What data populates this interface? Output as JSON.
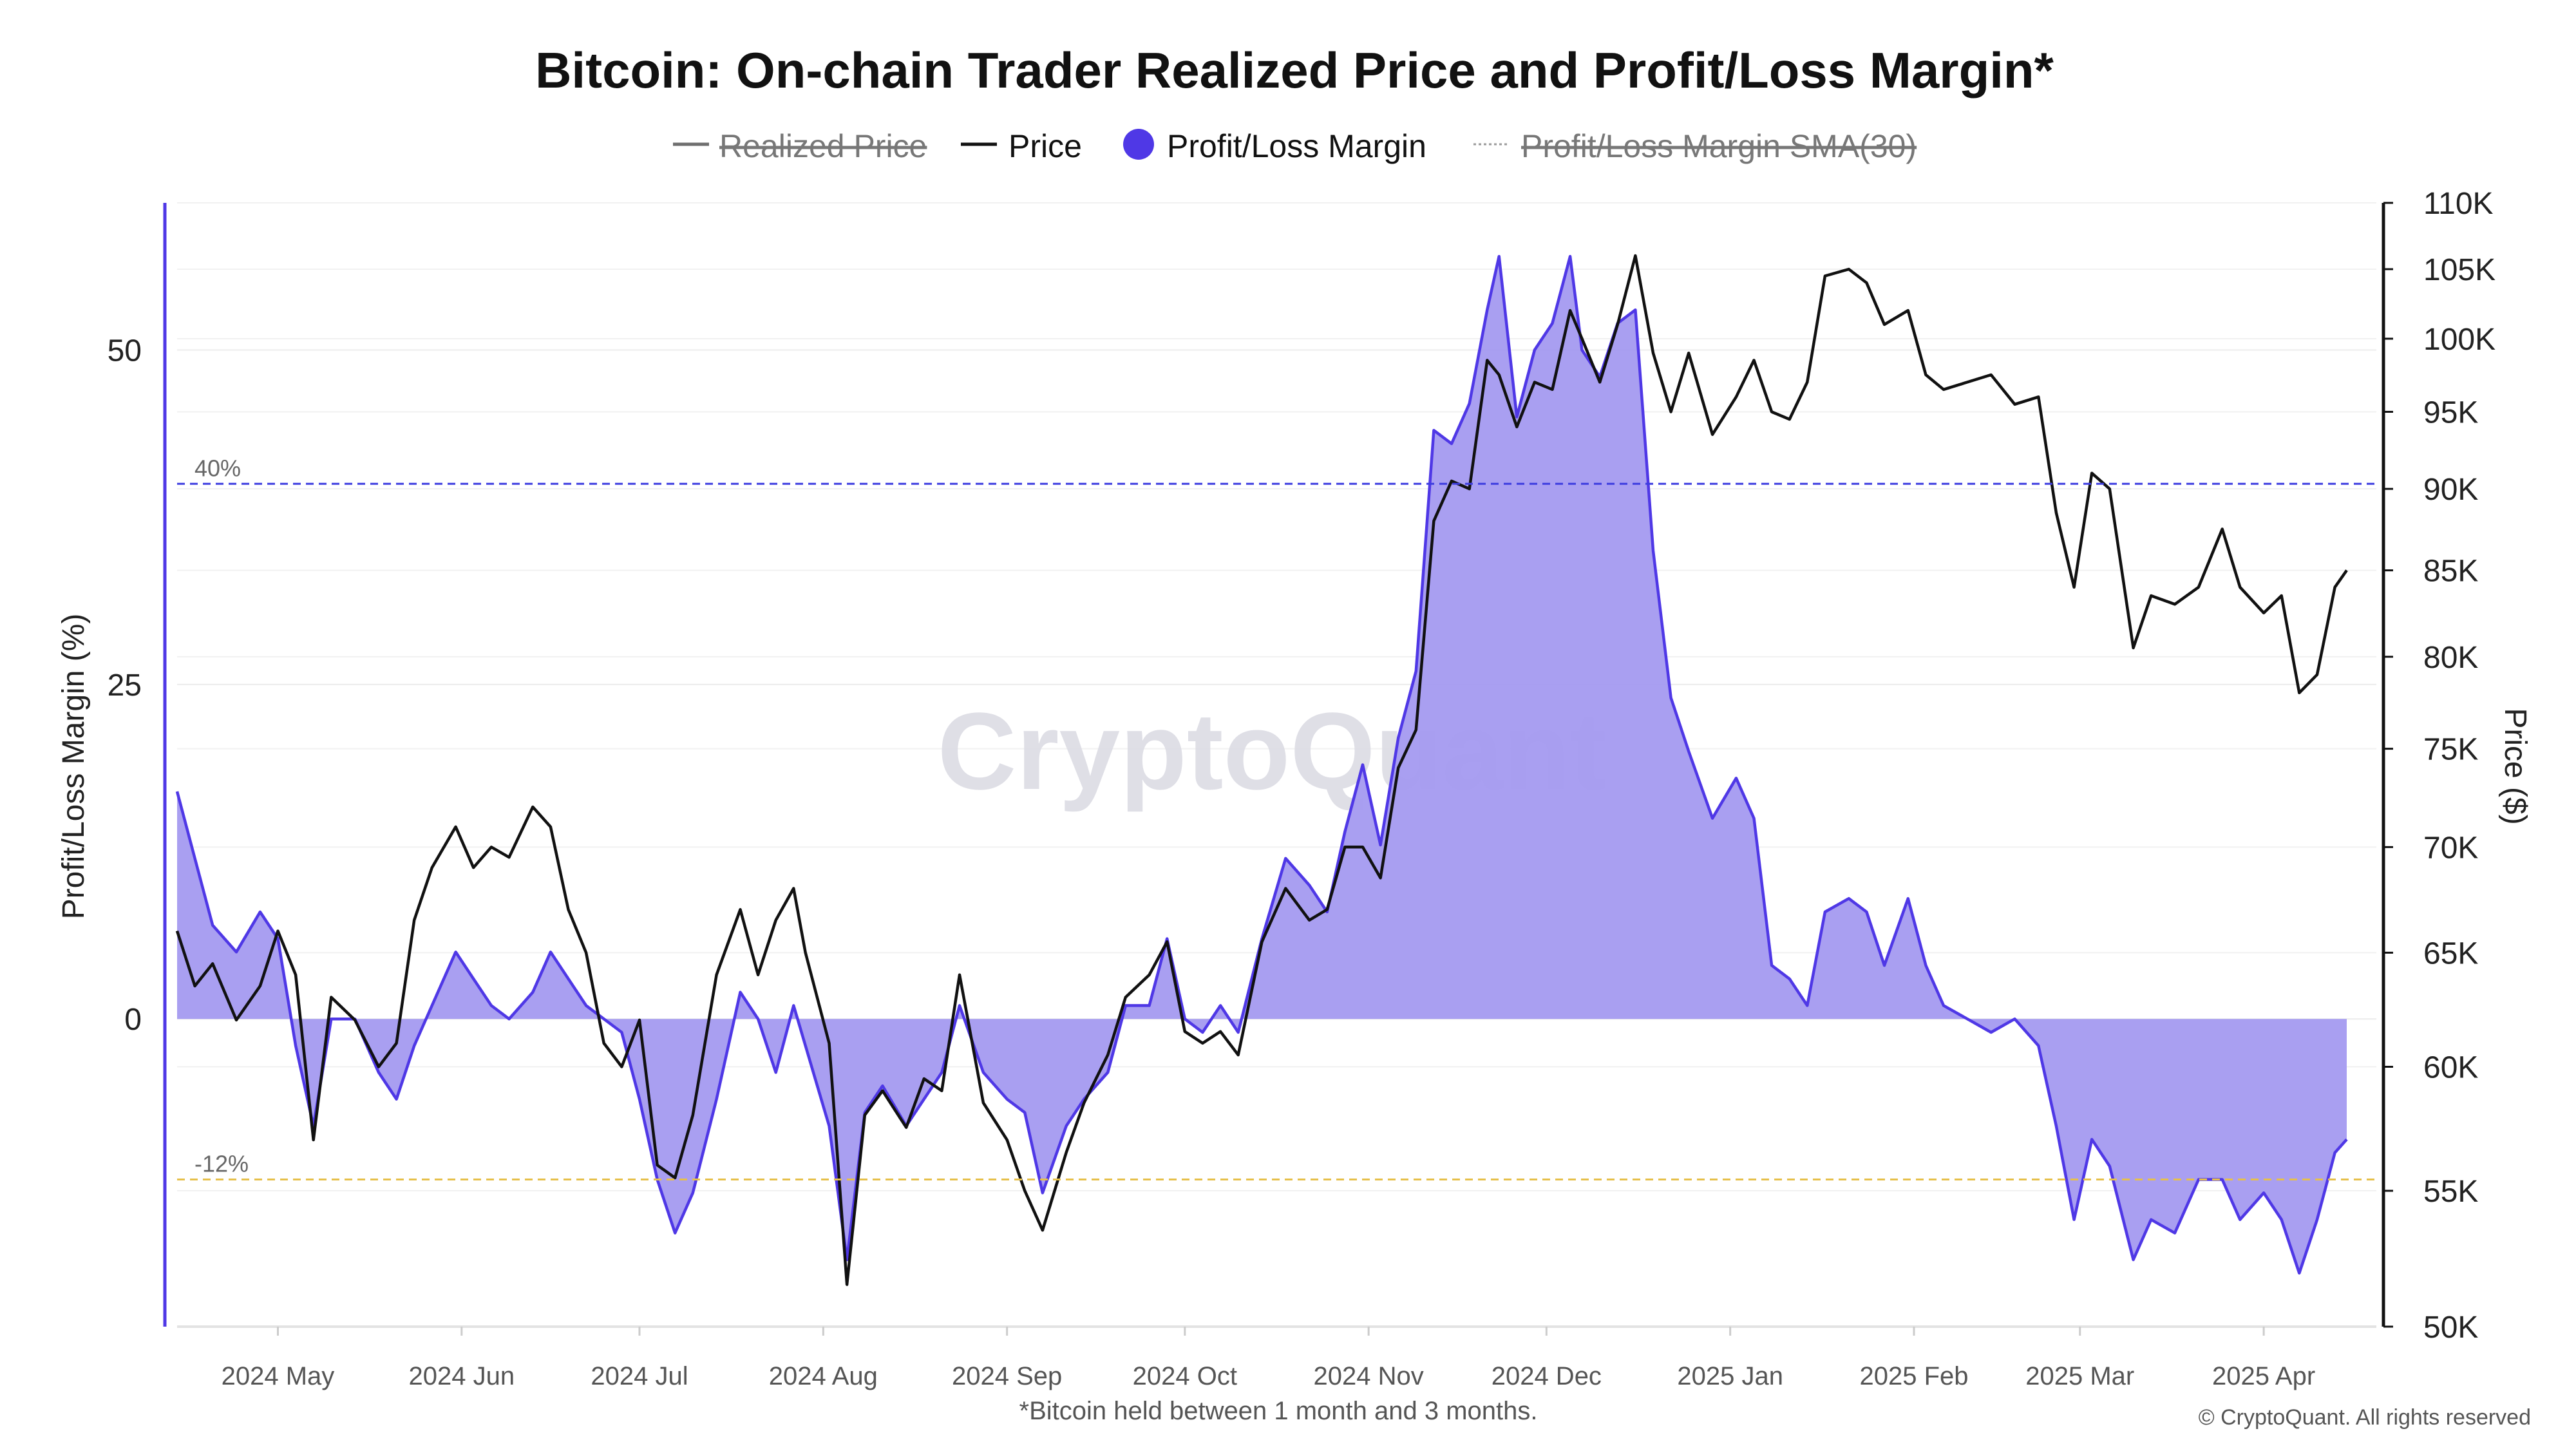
{
  "chart_data": {
    "type": "area",
    "title": "Bitcoin: On-chain Trader Realized Price and Profit/Loss Margin*",
    "footnote": "*Bitcoin held between 1 month and 3 months.",
    "copyright": "© CryptoQuant. All rights reserved",
    "watermark": "CryptoQuant",
    "legend": [
      {
        "name": "Realized Price",
        "style": "line",
        "color": "#6e6e6e",
        "hidden": true
      },
      {
        "name": "Price",
        "style": "line",
        "color": "#111111",
        "hidden": false
      },
      {
        "name": "Profit/Loss Margin",
        "style": "dot",
        "color": "#4f38e6",
        "hidden": false
      },
      {
        "name": "Profit/Loss Margin SMA(30)",
        "style": "dotted",
        "color": "#9a9a9a",
        "hidden": true
      }
    ],
    "legend_position": "top-center",
    "y_left": {
      "label": "Profit/Loss Margin (%)",
      "min": -23,
      "max": 61,
      "ticks": [
        0,
        25,
        50
      ],
      "tick_labels": [
        "0",
        "25",
        "50"
      ]
    },
    "y_right": {
      "label": "Price ($)",
      "scale": "log",
      "min": 50000,
      "max": 110000,
      "ticks": [
        50000,
        55000,
        60000,
        65000,
        70000,
        75000,
        80000,
        85000,
        90000,
        95000,
        100000,
        105000,
        110000
      ],
      "tick_labels": [
        "50K",
        "55K",
        "60K",
        "65K",
        "70K",
        "75K",
        "80K",
        "85K",
        "90K",
        "95K",
        "100K",
        "105K",
        "110K"
      ]
    },
    "x_axis": {
      "start": "2024-04-14",
      "end": "2025-04-20",
      "ticks": [
        "2024-05-01",
        "2024-06-01",
        "2024-07-01",
        "2024-08-01",
        "2024-09-01",
        "2024-10-01",
        "2024-11-01",
        "2024-12-01",
        "2025-01-01",
        "2025-02-01",
        "2025-03-01",
        "2025-04-01"
      ],
      "tick_labels": [
        "2024 May",
        "2024 Jun",
        "2024 Jul",
        "2024 Aug",
        "2024 Sep",
        "2024 Oct",
        "2024 Nov",
        "2024 Dec",
        "2025 Jan",
        "2025 Feb",
        "2025 Mar",
        "2025 Apr"
      ]
    },
    "reference_lines": [
      {
        "value": 40,
        "label": "40%",
        "color": "#3d3de0"
      },
      {
        "value": -12,
        "label": "-12%",
        "color": "#e6c04a"
      }
    ],
    "series": [
      {
        "name": "Profit/Loss Margin",
        "unit": "%",
        "color": "#4f38e6",
        "points": [
          [
            "2024-04-14",
            17
          ],
          [
            "2024-04-17",
            12
          ],
          [
            "2024-04-20",
            7
          ],
          [
            "2024-04-24",
            5
          ],
          [
            "2024-04-28",
            8
          ],
          [
            "2024-05-01",
            6
          ],
          [
            "2024-05-04",
            -2
          ],
          [
            "2024-05-07",
            -8
          ],
          [
            "2024-05-10",
            0
          ],
          [
            "2024-05-14",
            0
          ],
          [
            "2024-05-18",
            -4
          ],
          [
            "2024-05-21",
            -6
          ],
          [
            "2024-05-24",
            -2
          ],
          [
            "2024-05-27",
            1
          ],
          [
            "2024-05-31",
            5
          ],
          [
            "2024-06-03",
            3
          ],
          [
            "2024-06-06",
            1
          ],
          [
            "2024-06-09",
            0
          ],
          [
            "2024-06-13",
            2
          ],
          [
            "2024-06-16",
            5
          ],
          [
            "2024-06-19",
            3
          ],
          [
            "2024-06-22",
            1
          ],
          [
            "2024-06-25",
            0
          ],
          [
            "2024-06-28",
            -1
          ],
          [
            "2024-07-01",
            -6
          ],
          [
            "2024-07-04",
            -12
          ],
          [
            "2024-07-07",
            -16
          ],
          [
            "2024-07-10",
            -13
          ],
          [
            "2024-07-14",
            -6
          ],
          [
            "2024-07-18",
            2
          ],
          [
            "2024-07-21",
            0
          ],
          [
            "2024-07-24",
            -4
          ],
          [
            "2024-07-27",
            1
          ],
          [
            "2024-07-29",
            -2
          ],
          [
            "2024-08-02",
            -8
          ],
          [
            "2024-08-05",
            -18
          ],
          [
            "2024-08-08",
            -7
          ],
          [
            "2024-08-11",
            -5
          ],
          [
            "2024-08-15",
            -8
          ],
          [
            "2024-08-18",
            -6
          ],
          [
            "2024-08-21",
            -4
          ],
          [
            "2024-08-24",
            1
          ],
          [
            "2024-08-28",
            -4
          ],
          [
            "2024-09-01",
            -6
          ],
          [
            "2024-09-04",
            -7
          ],
          [
            "2024-09-07",
            -13
          ],
          [
            "2024-09-11",
            -8
          ],
          [
            "2024-09-14",
            -6
          ],
          [
            "2024-09-18",
            -4
          ],
          [
            "2024-09-21",
            1
          ],
          [
            "2024-09-25",
            1
          ],
          [
            "2024-09-28",
            6
          ],
          [
            "2024-10-01",
            0
          ],
          [
            "2024-10-04",
            -1
          ],
          [
            "2024-10-07",
            1
          ],
          [
            "2024-10-10",
            -1
          ],
          [
            "2024-10-14",
            6
          ],
          [
            "2024-10-18",
            12
          ],
          [
            "2024-10-22",
            10
          ],
          [
            "2024-10-25",
            8
          ],
          [
            "2024-10-28",
            14
          ],
          [
            "2024-10-31",
            19
          ],
          [
            "2024-11-03",
            13
          ],
          [
            "2024-11-06",
            21
          ],
          [
            "2024-11-09",
            26
          ],
          [
            "2024-11-12",
            44
          ],
          [
            "2024-11-15",
            43
          ],
          [
            "2024-11-18",
            46
          ],
          [
            "2024-11-21",
            53
          ],
          [
            "2024-11-23",
            57
          ],
          [
            "2024-11-26",
            45
          ],
          [
            "2024-11-29",
            50
          ],
          [
            "2024-12-02",
            52
          ],
          [
            "2024-12-05",
            57
          ],
          [
            "2024-12-07",
            50
          ],
          [
            "2024-12-10",
            48
          ],
          [
            "2024-12-13",
            52
          ],
          [
            "2024-12-16",
            53
          ],
          [
            "2024-12-19",
            35
          ],
          [
            "2024-12-22",
            24
          ],
          [
            "2024-12-25",
            20
          ],
          [
            "2024-12-29",
            15
          ],
          [
            "2025-01-02",
            18
          ],
          [
            "2025-01-05",
            15
          ],
          [
            "2025-01-08",
            4
          ],
          [
            "2025-01-11",
            3
          ],
          [
            "2025-01-14",
            1
          ],
          [
            "2025-01-17",
            8
          ],
          [
            "2025-01-21",
            9
          ],
          [
            "2025-01-24",
            8
          ],
          [
            "2025-01-27",
            4
          ],
          [
            "2025-01-31",
            9
          ],
          [
            "2025-02-03",
            4
          ],
          [
            "2025-02-06",
            1
          ],
          [
            "2025-02-10",
            0
          ],
          [
            "2025-02-14",
            -1
          ],
          [
            "2025-02-18",
            0
          ],
          [
            "2025-02-22",
            -2
          ],
          [
            "2025-02-25",
            -8
          ],
          [
            "2025-02-28",
            -15
          ],
          [
            "2025-03-03",
            -9
          ],
          [
            "2025-03-06",
            -11
          ],
          [
            "2025-03-10",
            -18
          ],
          [
            "2025-03-13",
            -15
          ],
          [
            "2025-03-17",
            -16
          ],
          [
            "2025-03-21",
            -12
          ],
          [
            "2025-03-25",
            -12
          ],
          [
            "2025-03-28",
            -15
          ],
          [
            "2025-04-01",
            -13
          ],
          [
            "2025-04-04",
            -15
          ],
          [
            "2025-04-07",
            -19
          ],
          [
            "2025-04-10",
            -15
          ],
          [
            "2025-04-13",
            -10
          ],
          [
            "2025-04-15",
            -9
          ]
        ]
      },
      {
        "name": "Price",
        "unit": "$",
        "color": "#111111",
        "points": [
          [
            "2024-04-14",
            66000
          ],
          [
            "2024-04-17",
            63500
          ],
          [
            "2024-04-20",
            64500
          ],
          [
            "2024-04-24",
            62000
          ],
          [
            "2024-04-28",
            63500
          ],
          [
            "2024-05-01",
            66000
          ],
          [
            "2024-05-04",
            64000
          ],
          [
            "2024-05-07",
            57000
          ],
          [
            "2024-05-10",
            63000
          ],
          [
            "2024-05-14",
            62000
          ],
          [
            "2024-05-18",
            60000
          ],
          [
            "2024-05-21",
            61000
          ],
          [
            "2024-05-24",
            66500
          ],
          [
            "2024-05-27",
            69000
          ],
          [
            "2024-05-31",
            71000
          ],
          [
            "2024-06-03",
            69000
          ],
          [
            "2024-06-06",
            70000
          ],
          [
            "2024-06-09",
            69500
          ],
          [
            "2024-06-13",
            72000
          ],
          [
            "2024-06-16",
            71000
          ],
          [
            "2024-06-19",
            67000
          ],
          [
            "2024-06-22",
            65000
          ],
          [
            "2024-06-25",
            61000
          ],
          [
            "2024-06-28",
            60000
          ],
          [
            "2024-07-01",
            62000
          ],
          [
            "2024-07-04",
            56000
          ],
          [
            "2024-07-07",
            55500
          ],
          [
            "2024-07-10",
            58000
          ],
          [
            "2024-07-14",
            64000
          ],
          [
            "2024-07-18",
            67000
          ],
          [
            "2024-07-21",
            64000
          ],
          [
            "2024-07-24",
            66500
          ],
          [
            "2024-07-27",
            68000
          ],
          [
            "2024-07-29",
            65000
          ],
          [
            "2024-08-02",
            61000
          ],
          [
            "2024-08-05",
            51500
          ],
          [
            "2024-08-08",
            58000
          ],
          [
            "2024-08-11",
            59000
          ],
          [
            "2024-08-15",
            57500
          ],
          [
            "2024-08-18",
            59500
          ],
          [
            "2024-08-21",
            59000
          ],
          [
            "2024-08-24",
            64000
          ],
          [
            "2024-08-28",
            58500
          ],
          [
            "2024-09-01",
            57000
          ],
          [
            "2024-09-04",
            55000
          ],
          [
            "2024-09-07",
            53500
          ],
          [
            "2024-09-11",
            56500
          ],
          [
            "2024-09-14",
            58500
          ],
          [
            "2024-09-18",
            60500
          ],
          [
            "2024-09-21",
            63000
          ],
          [
            "2024-09-25",
            64000
          ],
          [
            "2024-09-28",
            65500
          ],
          [
            "2024-10-01",
            61500
          ],
          [
            "2024-10-04",
            61000
          ],
          [
            "2024-10-07",
            61500
          ],
          [
            "2024-10-10",
            60500
          ],
          [
            "2024-10-14",
            65500
          ],
          [
            "2024-10-18",
            68000
          ],
          [
            "2024-10-22",
            66500
          ],
          [
            "2024-10-25",
            67000
          ],
          [
            "2024-10-28",
            70000
          ],
          [
            "2024-10-31",
            70000
          ],
          [
            "2024-11-03",
            68500
          ],
          [
            "2024-11-06",
            74000
          ],
          [
            "2024-11-09",
            76000
          ],
          [
            "2024-11-12",
            88000
          ],
          [
            "2024-11-15",
            90500
          ],
          [
            "2024-11-18",
            90000
          ],
          [
            "2024-11-21",
            98500
          ],
          [
            "2024-11-23",
            97500
          ],
          [
            "2024-11-26",
            94000
          ],
          [
            "2024-11-29",
            97000
          ],
          [
            "2024-12-02",
            96500
          ],
          [
            "2024-12-05",
            102000
          ],
          [
            "2024-12-07",
            100000
          ],
          [
            "2024-12-10",
            97000
          ],
          [
            "2024-12-13",
            101000
          ],
          [
            "2024-12-16",
            106000
          ],
          [
            "2024-12-19",
            99000
          ],
          [
            "2024-12-22",
            95000
          ],
          [
            "2024-12-25",
            99000
          ],
          [
            "2024-12-29",
            93500
          ],
          [
            "2025-01-02",
            96000
          ],
          [
            "2025-01-05",
            98500
          ],
          [
            "2025-01-08",
            95000
          ],
          [
            "2025-01-11",
            94500
          ],
          [
            "2025-01-14",
            97000
          ],
          [
            "2025-01-17",
            104500
          ],
          [
            "2025-01-21",
            105000
          ],
          [
            "2025-01-24",
            104000
          ],
          [
            "2025-01-27",
            101000
          ],
          [
            "2025-01-31",
            102000
          ],
          [
            "2025-02-03",
            97500
          ],
          [
            "2025-02-06",
            96500
          ],
          [
            "2025-02-10",
            97000
          ],
          [
            "2025-02-14",
            97500
          ],
          [
            "2025-02-18",
            95500
          ],
          [
            "2025-02-22",
            96000
          ],
          [
            "2025-02-25",
            88500
          ],
          [
            "2025-02-28",
            84000
          ],
          [
            "2025-03-03",
            91000
          ],
          [
            "2025-03-06",
            90000
          ],
          [
            "2025-03-10",
            80500
          ],
          [
            "2025-03-13",
            83500
          ],
          [
            "2025-03-17",
            83000
          ],
          [
            "2025-03-21",
            84000
          ],
          [
            "2025-03-25",
            87500
          ],
          [
            "2025-03-28",
            84000
          ],
          [
            "2025-04-01",
            82500
          ],
          [
            "2025-04-04",
            83500
          ],
          [
            "2025-04-07",
            78000
          ],
          [
            "2025-04-10",
            79000
          ],
          [
            "2025-04-13",
            84000
          ],
          [
            "2025-04-15",
            85000
          ]
        ]
      }
    ]
  }
}
